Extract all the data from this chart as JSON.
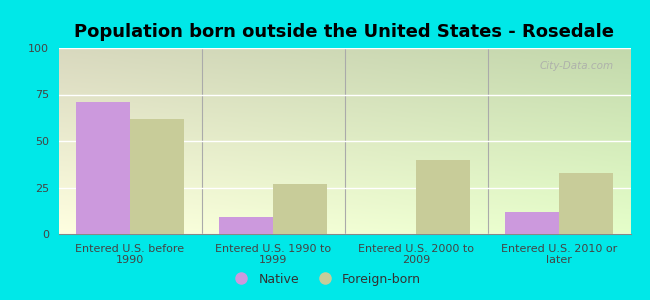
{
  "title": "Population born outside the United States - Rosedale",
  "categories": [
    "Entered U.S. before\n1990",
    "Entered U.S. 1990 to\n1999",
    "Entered U.S. 2000 to\n2009",
    "Entered U.S. 2010 or\nlater"
  ],
  "native_values": [
    71,
    9,
    0,
    12
  ],
  "foreign_values": [
    62,
    27,
    40,
    33
  ],
  "native_color": "#cc99dd",
  "foreign_color": "#c8cc99",
  "outer_background": "#00e8e8",
  "ylim": [
    0,
    100
  ],
  "yticks": [
    0,
    25,
    50,
    75,
    100
  ],
  "bar_width": 0.38,
  "legend_native": "Native",
  "legend_foreign": "Foreign-born",
  "title_fontsize": 13,
  "tick_fontsize": 8,
  "legend_fontsize": 9,
  "watermark": "City-Data.com",
  "grid_color": "#ffffff",
  "separator_color": "#aaaaaa"
}
